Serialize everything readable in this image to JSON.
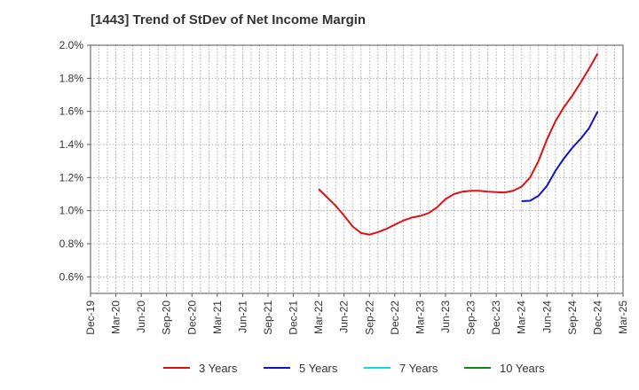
{
  "chart_data": {
    "type": "line",
    "title": "[1443]  Trend of StDev of Net Income Margin",
    "xlabel": "",
    "ylabel": "",
    "ylim": [
      0.5,
      2.0
    ],
    "y_ticks": [
      0.6,
      0.8,
      1.0,
      1.2,
      1.4,
      1.6,
      1.8,
      2.0
    ],
    "y_tick_labels": [
      "0.6%",
      "0.8%",
      "1.0%",
      "1.2%",
      "1.4%",
      "1.6%",
      "1.8%",
      "2.0%"
    ],
    "x_tick_labels": [
      "Dec-19",
      "Mar-20",
      "Jun-20",
      "Sep-20",
      "Dec-20",
      "Mar-21",
      "Jun-21",
      "Sep-21",
      "Dec-21",
      "Mar-22",
      "Jun-22",
      "Sep-22",
      "Dec-22",
      "Mar-23",
      "Jun-23",
      "Sep-23",
      "Dec-23",
      "Mar-24",
      "Jun-24",
      "Sep-24",
      "Dec-24",
      "Mar-25"
    ],
    "x_range_months": [
      0,
      63
    ],
    "grid": true,
    "legend_position": "bottom",
    "series": [
      {
        "name": "3 Years",
        "color": "#dd1111",
        "x_months": [
          27,
          28,
          29,
          30,
          31,
          32,
          33,
          34,
          35,
          36,
          37,
          38,
          39,
          40,
          41,
          42,
          43,
          44,
          45,
          46,
          47,
          48,
          49,
          50,
          51,
          52,
          53,
          54,
          55,
          56,
          57,
          58,
          59,
          60
        ],
        "values": [
          1.13,
          1.08,
          1.03,
          0.97,
          0.905,
          0.865,
          0.855,
          0.87,
          0.89,
          0.915,
          0.94,
          0.958,
          0.968,
          0.985,
          1.02,
          1.07,
          1.1,
          1.115,
          1.12,
          1.12,
          1.115,
          1.112,
          1.11,
          1.12,
          1.145,
          1.2,
          1.3,
          1.43,
          1.54,
          1.625,
          1.695,
          1.775,
          1.86,
          1.95
        ]
      },
      {
        "name": "5 Years",
        "color": "#1111cc",
        "x_months": [
          51,
          52,
          53,
          54,
          55,
          56,
          57,
          58,
          59,
          60
        ],
        "values": [
          1.057,
          1.06,
          1.09,
          1.15,
          1.24,
          1.315,
          1.38,
          1.435,
          1.5,
          1.6
        ]
      },
      {
        "name": "7 Years",
        "color": "#11dddd",
        "x_months": [],
        "values": []
      },
      {
        "name": "10 Years",
        "color": "#118811",
        "x_months": [],
        "values": []
      }
    ]
  }
}
